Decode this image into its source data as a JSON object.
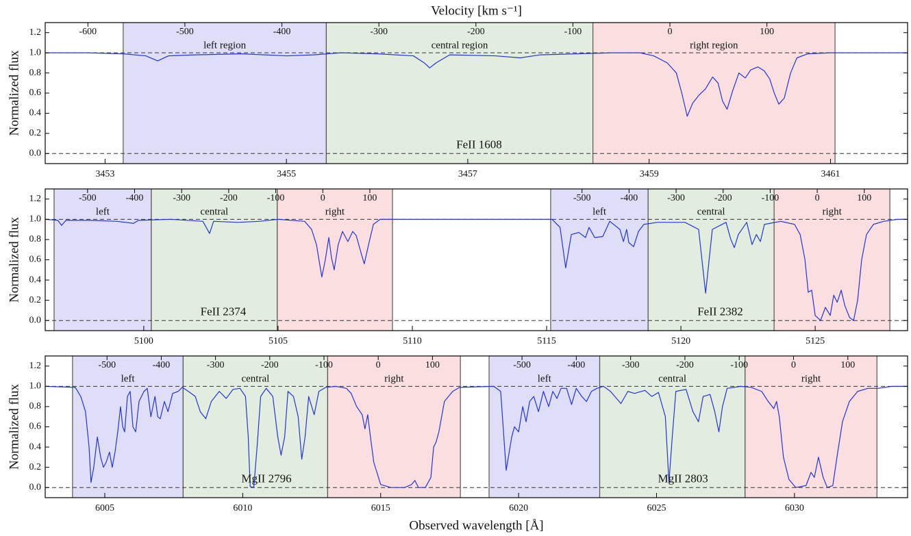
{
  "chart_data": [
    {
      "type": "line",
      "x2label": "Velocity [km s⁻¹]",
      "ylabel": "Normalized flux",
      "xlim": [
        3452.34,
        3461.85
      ],
      "ylim": [
        -0.1,
        1.3
      ],
      "xticks": [
        3453,
        3455,
        3457,
        3459,
        3461
      ],
      "yticks": [
        {
          "value": 0,
          "label": "0.0"
        },
        0.2,
        0.4,
        0.6,
        0.8,
        {
          "value": 1,
          "label": "1.0"
        },
        1.2
      ],
      "hlines": [
        0,
        1
      ],
      "series": [
        {
          "color": "#2233dd",
          "x": [
            3452.34,
            3452.8,
            3453.2,
            3453.45,
            3453.58,
            3453.7,
            3454.0,
            3454.5,
            3455.0,
            3455.3,
            3455.6,
            3456.0,
            3456.4,
            3456.52,
            3456.58,
            3456.65,
            3456.8,
            3457.3,
            3457.58,
            3457.8,
            3458.2,
            3458.6,
            3458.9,
            3459.05,
            3459.2,
            3459.3,
            3459.36,
            3459.42,
            3459.48,
            3459.55,
            3459.62,
            3459.7,
            3459.76,
            3459.81,
            3459.86,
            3459.92,
            3459.99,
            3460.06,
            3460.12,
            3460.2,
            3460.27,
            3460.33,
            3460.38,
            3460.43,
            3460.49,
            3460.56,
            3460.63,
            3460.75,
            3461.0,
            3461.85
          ],
          "values": [
            1.0,
            1.0,
            0.99,
            0.97,
            0.92,
            0.97,
            0.98,
            0.99,
            0.97,
            0.98,
            1.0,
            0.99,
            0.97,
            0.9,
            0.85,
            0.9,
            0.98,
            0.97,
            0.95,
            0.98,
            0.99,
            1.0,
            1.0,
            0.97,
            0.9,
            0.8,
            0.6,
            0.37,
            0.5,
            0.58,
            0.64,
            0.76,
            0.7,
            0.52,
            0.44,
            0.62,
            0.8,
            0.75,
            0.83,
            0.86,
            0.82,
            0.74,
            0.6,
            0.49,
            0.55,
            0.8,
            0.95,
            0.99,
            1.0,
            1.0
          ]
        }
      ],
      "transitions": [
        {
          "label": "FeII 1608",
          "vlim": [
            -644,
            245
          ],
          "vticks": [
            -600,
            -500,
            -400,
            -300,
            -200,
            -100,
            0,
            100
          ],
          "regions": [
            {
              "label": "left region",
              "xlim": [
                3453.2,
                3455.44
              ],
              "color": "#dedef8"
            },
            {
              "label": "central region",
              "xlim": [
                3455.44,
                3458.38
              ],
              "color": "#e2eddf"
            },
            {
              "label": "right region",
              "xlim": [
                3458.38,
                3461.05
              ],
              "color": "#fbdfe0"
            }
          ]
        }
      ]
    },
    {
      "type": "line",
      "ylabel": "Normalized flux",
      "xlim": [
        5096.33,
        5128.44
      ],
      "ylim": [
        -0.1,
        1.3
      ],
      "xticks": [
        5100,
        5105,
        5110,
        5115,
        5120,
        5125
      ],
      "yticks": [
        {
          "value": 0,
          "label": "0.0"
        },
        0.2,
        0.4,
        0.6,
        0.8,
        {
          "value": 1,
          "label": "1.0"
        },
        1.2
      ],
      "hlines": [
        0,
        1
      ],
      "series": [
        {
          "color": "#2233dd",
          "x": [
            5096.33,
            5096.8,
            5096.94,
            5097.1,
            5098.0,
            5099.0,
            5099.62,
            5099.8,
            5101.0,
            5102.2,
            5102.45,
            5102.6,
            5103.5,
            5104.3,
            5105.0,
            5105.99,
            5106.25,
            5106.43,
            5106.63,
            5106.76,
            5106.89,
            5106.99,
            5107.09,
            5107.24,
            5107.4,
            5107.6,
            5107.78,
            5107.91,
            5108.11,
            5108.21,
            5108.37,
            5108.55,
            5108.8,
            5112.0,
            5115.2,
            5115.5,
            5115.71,
            5115.92,
            5116.2,
            5116.45,
            5116.58,
            5116.79,
            5117.09,
            5117.35,
            5117.73,
            5117.86,
            5117.98,
            5118.06,
            5118.24,
            5118.42,
            5118.62,
            5119.13,
            5120.15,
            5120.66,
            5120.92,
            5121.17,
            5121.68,
            5121.86,
            5121.99,
            5122.14,
            5122.45,
            5122.65,
            5122.81,
            5122.96,
            5123.11,
            5123.72,
            5124.23,
            5124.44,
            5124.62,
            5124.74,
            5124.87,
            5125.0,
            5125.2,
            5125.38,
            5125.56,
            5125.69,
            5125.82,
            5125.97,
            5126.1,
            5126.28,
            5126.43,
            5126.58,
            5126.73,
            5126.91,
            5127.17,
            5127.55,
            5128.06,
            5128.44
          ],
          "values": [
            1.0,
            0.99,
            0.94,
            0.99,
            0.99,
            0.98,
            0.96,
            0.99,
            1.0,
            0.98,
            0.86,
            0.98,
            0.97,
            0.98,
            1.0,
            0.98,
            0.9,
            0.75,
            0.43,
            0.6,
            0.82,
            0.62,
            0.5,
            0.75,
            0.88,
            0.78,
            0.88,
            0.84,
            0.65,
            0.56,
            0.75,
            0.95,
            1.0,
            1.0,
            1.0,
            0.92,
            0.52,
            0.85,
            0.87,
            0.82,
            0.92,
            0.82,
            0.83,
            0.98,
            0.9,
            0.78,
            0.9,
            0.77,
            0.73,
            0.88,
            0.95,
            0.97,
            0.97,
            0.9,
            0.27,
            0.9,
            0.97,
            0.8,
            0.72,
            0.85,
            0.97,
            0.75,
            0.85,
            0.78,
            0.95,
            0.98,
            0.95,
            0.85,
            0.6,
            0.28,
            0.3,
            0.05,
            0.0,
            0.13,
            0.05,
            0.25,
            0.18,
            0.3,
            0.15,
            0.03,
            0.0,
            0.2,
            0.6,
            0.85,
            0.95,
            0.98,
            1.0,
            1.0
          ]
        }
      ],
      "transitions": [
        {
          "label": "FeII 2374",
          "vlim": [
            -590,
            1243
          ],
          "vticks": [
            -500,
            -400,
            -300,
            -200,
            -100,
            0,
            100
          ],
          "regions": [
            {
              "label": "left",
              "xlim": [
                5096.66,
                5100.28
              ],
              "color": "#dedef8"
            },
            {
              "label": "central",
              "xlim": [
                5100.28,
                5104.97
              ],
              "color": "#e2eddf"
            },
            {
              "label": "right",
              "xlim": [
                5104.97,
                5109.26
              ],
              "color": "#fbdfe0"
            }
          ]
        },
        {
          "label": "FeII 2382",
          "vlim": [
            -1641,
            192
          ],
          "vticks": [
            -500,
            -400,
            -300,
            -200,
            -100,
            0,
            100
          ],
          "regions": [
            {
              "label": "left",
              "xlim": [
                5115.15,
                5118.78
              ],
              "color": "#dedef8"
            },
            {
              "label": "central",
              "xlim": [
                5118.78,
                5123.47
              ],
              "color": "#e2eddf"
            },
            {
              "label": "right",
              "xlim": [
                5123.47,
                5127.78
              ],
              "color": "#fbdfe0"
            }
          ]
        }
      ]
    },
    {
      "type": "line",
      "xlabel": "Observed wavelength [Å]",
      "ylabel": "Normalized flux",
      "xlim": [
        6002.84,
        6034.1
      ],
      "ylim": [
        -0.1,
        1.3
      ],
      "xticks": [
        6005,
        6010,
        6015,
        6020,
        6025,
        6030
      ],
      "yticks": [
        {
          "value": 0,
          "label": "0.0"
        },
        0.2,
        0.4,
        0.6,
        0.8,
        {
          "value": 1,
          "label": "1.0"
        },
        1.2
      ],
      "hlines": [
        0,
        1
      ],
      "series": [
        {
          "color": "#2233dd",
          "x": [
            6002.84,
            6003.93,
            6004.13,
            6004.3,
            6004.43,
            6004.5,
            6004.6,
            6004.73,
            6004.85,
            6004.95,
            6005.05,
            6005.17,
            6005.27,
            6005.37,
            6005.47,
            6005.57,
            6005.65,
            6005.72,
            6005.82,
            6005.92,
            6006.02,
            6006.12,
            6006.24,
            6006.42,
            6006.54,
            6006.67,
            6006.82,
            6006.92,
            6007.01,
            6007.16,
            6007.29,
            6007.46,
            6007.66,
            6007.81,
            6008.03,
            6008.28,
            6008.46,
            6008.66,
            6008.86,
            6009.15,
            6009.4,
            6009.65,
            6009.9,
            6010.1,
            6010.2,
            6010.27,
            6010.4,
            6010.52,
            6010.65,
            6010.85,
            6011.09,
            6011.27,
            6011.39,
            6011.52,
            6011.64,
            6011.84,
            6012.01,
            6012.14,
            6012.26,
            6012.39,
            6012.59,
            6012.76,
            6013.01,
            6013.38,
            6013.76,
            6013.93,
            6014.13,
            6014.33,
            6014.43,
            6014.53,
            6014.63,
            6014.75,
            6015.0,
            6015.37,
            6015.87,
            6016.12,
            6016.24,
            6016.37,
            6016.62,
            6016.82,
            6016.92,
            6017.01,
            6017.11,
            6017.31,
            6017.61,
            6017.86,
            6019.1,
            6019.35,
            6019.55,
            6019.75,
            6019.85,
            6020.0,
            6020.15,
            6020.27,
            6020.4,
            6020.55,
            6020.72,
            6020.9,
            6021.09,
            6021.24,
            6021.39,
            6021.54,
            6021.74,
            6021.92,
            6022.09,
            6022.29,
            6022.46,
            6022.64,
            6022.84,
            6023.08,
            6023.33,
            6023.71,
            6023.96,
            6024.2,
            6024.58,
            6024.83,
            6025.07,
            6025.32,
            6025.45,
            6025.57,
            6025.7,
            6026.07,
            6026.32,
            6026.52,
            6026.69,
            6026.94,
            6027.11,
            6027.26,
            6027.39,
            6027.56,
            6028.06,
            6028.43,
            6028.81,
            6029.05,
            6029.25,
            6029.35,
            6029.45,
            6029.6,
            6029.8,
            6030.05,
            6030.42,
            6030.6,
            6030.72,
            6030.87,
            6031.04,
            6031.19,
            6031.39,
            6031.54,
            6031.74,
            6031.99,
            6032.29,
            6032.66,
            6033.03,
            6033.53,
            6034.1
          ],
          "values": [
            1.0,
            0.99,
            0.9,
            0.75,
            0.4,
            0.05,
            0.2,
            0.5,
            0.3,
            0.2,
            0.25,
            0.35,
            0.2,
            0.35,
            0.55,
            0.8,
            0.6,
            0.55,
            0.9,
            0.95,
            0.6,
            0.55,
            0.85,
            0.95,
            0.98,
            0.7,
            0.9,
            0.7,
            0.68,
            0.85,
            0.75,
            0.93,
            0.95,
            0.99,
            0.95,
            0.9,
            0.75,
            0.68,
            0.85,
            0.95,
            0.88,
            0.97,
            0.98,
            0.9,
            0.5,
            0.01,
            0.0,
            0.4,
            0.9,
            0.98,
            0.9,
            0.5,
            0.32,
            0.5,
            0.95,
            0.9,
            0.7,
            0.28,
            0.5,
            0.9,
            0.72,
            0.95,
            0.99,
            1.0,
            0.98,
            0.93,
            0.8,
            0.72,
            0.58,
            0.72,
            0.5,
            0.25,
            0.03,
            0.0,
            0.0,
            0.03,
            0.07,
            0.0,
            0.0,
            0.1,
            0.4,
            0.45,
            0.55,
            0.85,
            0.95,
            0.99,
            1.0,
            0.95,
            0.17,
            0.5,
            0.6,
            0.55,
            0.8,
            0.65,
            0.85,
            0.9,
            0.75,
            0.95,
            0.8,
            0.95,
            0.88,
            0.98,
            0.98,
            0.82,
            0.98,
            0.9,
            0.85,
            0.95,
            0.98,
            1.0,
            0.95,
            0.83,
            0.95,
            0.93,
            0.96,
            0.9,
            0.94,
            0.7,
            0.05,
            0.5,
            0.95,
            0.97,
            0.75,
            0.65,
            0.9,
            0.92,
            0.75,
            0.55,
            0.8,
            0.98,
            1.0,
            0.99,
            0.95,
            0.85,
            0.78,
            0.85,
            0.7,
            0.3,
            0.08,
            0.0,
            0.02,
            0.15,
            0.1,
            0.3,
            0.1,
            0.0,
            0.02,
            0.3,
            0.65,
            0.85,
            0.95,
            0.98,
            0.98,
            1.0,
            1.0
          ]
        }
      ],
      "transitions": [
        {
          "label": "MgII 2796",
          "vlim": [
            -614,
            976
          ],
          "vticks": [
            -500,
            -400,
            -300,
            -200,
            -100,
            0,
            100
          ],
          "regions": [
            {
              "label": "left",
              "xlim": [
                6003.83,
                6007.84
              ],
              "color": "#dedef8"
            },
            {
              "label": "central",
              "xlim": [
                6007.84,
                6013.08
              ],
              "color": "#e2eddf"
            },
            {
              "label": "right",
              "xlim": [
                6013.08,
                6017.89
              ],
              "color": "#fbdfe0"
            }
          ]
        },
        {
          "label": "MgII 2803",
          "vlim": [
            -1378,
            210
          ],
          "vticks": [
            -500,
            -400,
            -300,
            -200,
            -100,
            0,
            100
          ],
          "regions": [
            {
              "label": "left",
              "xlim": [
                6018.93,
                6022.94
              ],
              "color": "#dedef8"
            },
            {
              "label": "central",
              "xlim": [
                6022.94,
                6028.21
              ],
              "color": "#e2eddf"
            },
            {
              "label": "right",
              "xlim": [
                6028.21,
                6032.99
              ],
              "color": "#fbdfe0"
            }
          ]
        }
      ]
    }
  ]
}
